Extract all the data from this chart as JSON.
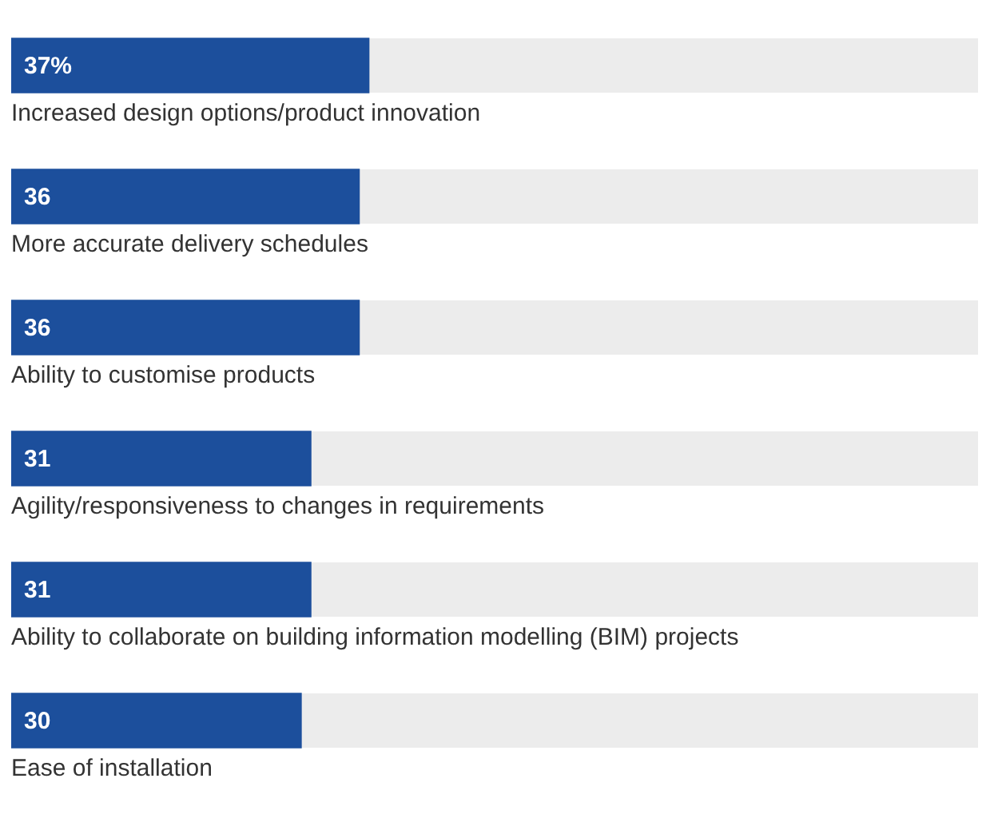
{
  "chart_data": {
    "type": "bar",
    "orientation": "horizontal",
    "categories": [
      "Increased design options/product innovation",
      "More accurate delivery schedules",
      "Ability to customise products",
      "Agility/responsiveness to changes in requirements",
      "Ability to collaborate on building information modelling (BIM) projects",
      "Ease of installation"
    ],
    "values": [
      37,
      36,
      36,
      31,
      31,
      30
    ],
    "value_labels": [
      "37%",
      "36",
      "36",
      "31",
      "31",
      "30"
    ],
    "color": "#1c4f9c",
    "xlim": [
      0,
      100
    ],
    "legend": false
  }
}
